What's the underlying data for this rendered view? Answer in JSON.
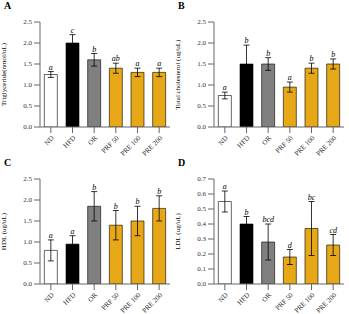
{
  "chart_data": [
    {
      "type": "bar",
      "title": "A",
      "ylabel": "Triglyceride(nmol/uL)",
      "categories": [
        "ND",
        "HFD",
        "OR",
        "PRF 50",
        "PRE 100",
        "PRE 200"
      ],
      "values": [
        1.25,
        2.0,
        1.6,
        1.4,
        1.3,
        1.3
      ],
      "errors": [
        0.07,
        0.2,
        0.15,
        0.12,
        0.1,
        0.1
      ],
      "annotations": [
        "a",
        "c",
        "b",
        "ab",
        "a",
        "a"
      ],
      "colors": [
        "white",
        "black",
        "#808080",
        "#E6A817",
        "#E6A817",
        "#E6A817"
      ],
      "ylim": [
        0,
        2.5
      ],
      "yticks": [
        {
          "value": 0,
          "label": "0.0"
        },
        0.5,
        {
          "value": 1,
          "label": "1.0"
        },
        1.5,
        {
          "value": 2,
          "label": "2.0"
        },
        2.5
      ]
    },
    {
      "type": "bar",
      "title": "B",
      "ylabel": "Total cholesterol (ug/uL)",
      "categories": [
        "ND",
        "HFD",
        "OR",
        "PRF 50",
        "PRE 100",
        "PRE 200"
      ],
      "values": [
        0.75,
        1.5,
        1.5,
        0.95,
        1.4,
        1.5
      ],
      "errors": [
        0.08,
        0.45,
        0.15,
        0.12,
        0.12,
        0.12
      ],
      "annotations": [
        "a",
        "b",
        "b",
        "a",
        "b",
        "b"
      ],
      "colors": [
        "white",
        "black",
        "#808080",
        "#E6A817",
        "#E6A817",
        "#E6A817"
      ],
      "ylim": [
        0,
        2.5
      ],
      "yticks": [
        {
          "value": 0,
          "label": "0.0"
        },
        0.5,
        {
          "value": 1,
          "label": "1.0"
        },
        1.5,
        {
          "value": 2,
          "label": "2.0"
        },
        2.5
      ]
    },
    {
      "type": "bar",
      "title": "C",
      "ylabel": "HDL (ug/uL)",
      "categories": [
        "ND",
        "HFD",
        "OR",
        "PRF 50",
        "PRE 100",
        "PRE 200"
      ],
      "values": [
        0.8,
        0.95,
        1.85,
        1.4,
        1.5,
        1.8
      ],
      "errors": [
        0.25,
        0.2,
        0.35,
        0.35,
        0.35,
        0.3
      ],
      "annotations": [
        "a",
        "a",
        "b",
        "b",
        "b",
        "b"
      ],
      "colors": [
        "white",
        "black",
        "#808080",
        "#E6A817",
        "#E6A817",
        "#E6A817"
      ],
      "ylim": [
        0,
        2.5
      ],
      "yticks": [
        {
          "value": 0,
          "label": "0.0"
        },
        0.5,
        {
          "value": 1,
          "label": "1.0"
        },
        1.5,
        {
          "value": 2,
          "label": "2.0"
        },
        2.5
      ]
    },
    {
      "type": "bar",
      "title": "D",
      "ylabel": "LDL (ug/uL)",
      "categories": [
        "ND",
        "HFD",
        "OR",
        "PRF 50",
        "PRE 100",
        "PRE 200"
      ],
      "values": [
        0.55,
        0.4,
        0.28,
        0.18,
        0.37,
        0.26
      ],
      "errors": [
        0.07,
        0.05,
        0.12,
        0.05,
        0.18,
        0.07
      ],
      "annotations": [
        "a",
        "b",
        "bcd",
        "d",
        "bc",
        "cd"
      ],
      "colors": [
        "white",
        "black",
        "#808080",
        "#E6A817",
        "#E6A817",
        "#E6A817"
      ],
      "ylim": [
        0,
        0.7
      ],
      "yticks": [
        {
          "value": 0,
          "label": "0.0"
        },
        0.1,
        0.2,
        0.3,
        0.4,
        0.5,
        0.6,
        0.7
      ]
    }
  ]
}
